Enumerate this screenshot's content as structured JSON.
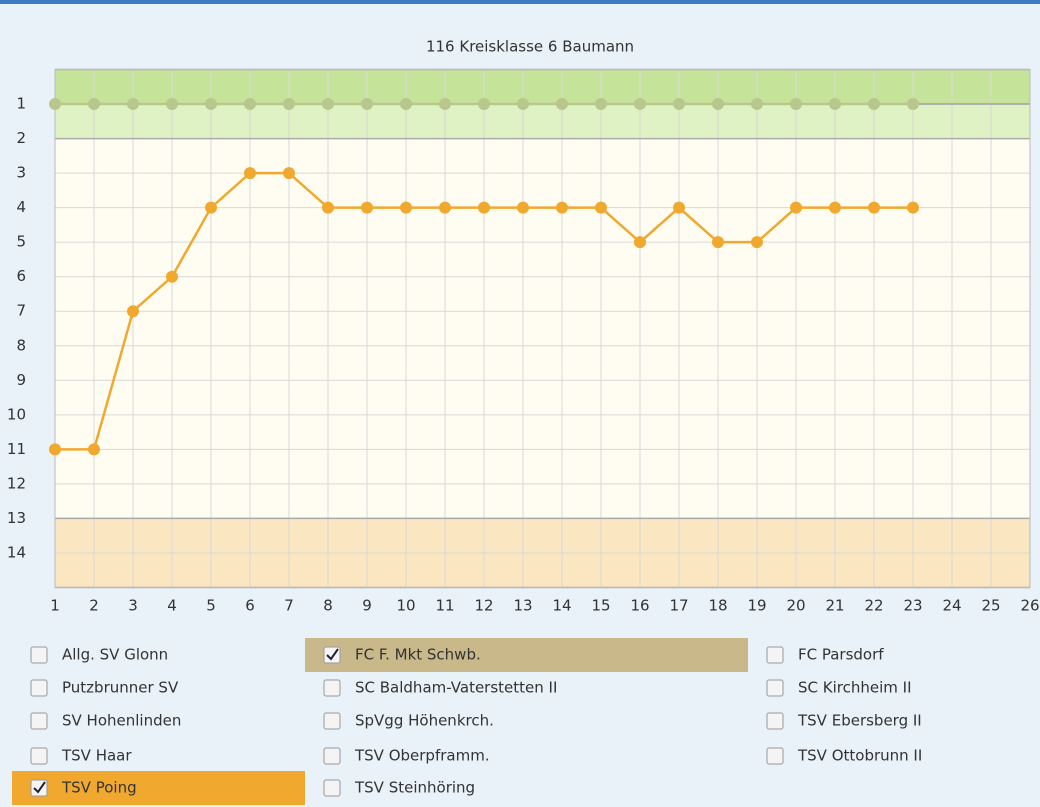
{
  "chart_data": {
    "type": "line",
    "title": "116 Kreisklasse 6 Baumann",
    "x": [
      1,
      2,
      3,
      4,
      5,
      6,
      7,
      8,
      9,
      10,
      11,
      12,
      13,
      14,
      15,
      16,
      17,
      18,
      19,
      20,
      21,
      22,
      23
    ],
    "series": [
      {
        "name": "FC F. Mkt Schwb.",
        "color": "#b9c78f",
        "values": [
          1,
          1,
          1,
          1,
          1,
          1,
          1,
          1,
          1,
          1,
          1,
          1,
          1,
          1,
          1,
          1,
          1,
          1,
          1,
          1,
          1,
          1,
          1
        ]
      },
      {
        "name": "TSV Poing",
        "color": "#f0a82e",
        "values": [
          11,
          11,
          7,
          6,
          4,
          3,
          3,
          4,
          4,
          4,
          4,
          4,
          4,
          4,
          4,
          5,
          4,
          5,
          5,
          4,
          4,
          4,
          4
        ]
      }
    ],
    "xlim": [
      1,
      26
    ],
    "xticks": [
      1,
      2,
      3,
      4,
      5,
      6,
      7,
      8,
      9,
      10,
      11,
      12,
      13,
      14,
      15,
      16,
      17,
      18,
      19,
      20,
      21,
      22,
      23,
      24,
      25,
      26
    ],
    "ylim": [
      15,
      0
    ],
    "yticks": [
      1,
      2,
      3,
      4,
      5,
      6,
      7,
      8,
      9,
      10,
      11,
      12,
      13,
      14
    ],
    "inverted": true,
    "grid": true,
    "bands": [
      {
        "from": 0,
        "to": 1,
        "color": "#c6e39a"
      },
      {
        "from": 1,
        "to": 2,
        "color": "#def2c4"
      },
      {
        "from": 13,
        "to": 15,
        "color": "#fbe6c2"
      }
    ]
  },
  "teams": [
    [
      {
        "name": "Allg. SV Glonn",
        "checked": false
      },
      {
        "name": "Putzbrunner SV",
        "checked": false
      },
      {
        "name": "SV Hohenlinden",
        "checked": false
      },
      {
        "name": "TSV Haar",
        "checked": false
      },
      {
        "name": "TSV Poing",
        "checked": true,
        "highlight": "#f0a82e"
      }
    ],
    [
      {
        "name": "FC F. Mkt Schwb.",
        "checked": true,
        "highlight": "#c9b88a"
      },
      {
        "name": "SC Baldham-Vaterstetten II",
        "checked": false
      },
      {
        "name": "SpVgg Höhenkrch.",
        "checked": false
      },
      {
        "name": "TSV Oberpframm.",
        "checked": false
      },
      {
        "name": "TSV Steinhöring",
        "checked": false
      }
    ],
    [
      {
        "name": "FC Parsdorf",
        "checked": false
      },
      {
        "name": "SC Kirchheim II",
        "checked": false
      },
      {
        "name": "TSV Ebersberg II",
        "checked": false
      },
      {
        "name": "TSV Ottobrunn II",
        "checked": false
      }
    ]
  ]
}
